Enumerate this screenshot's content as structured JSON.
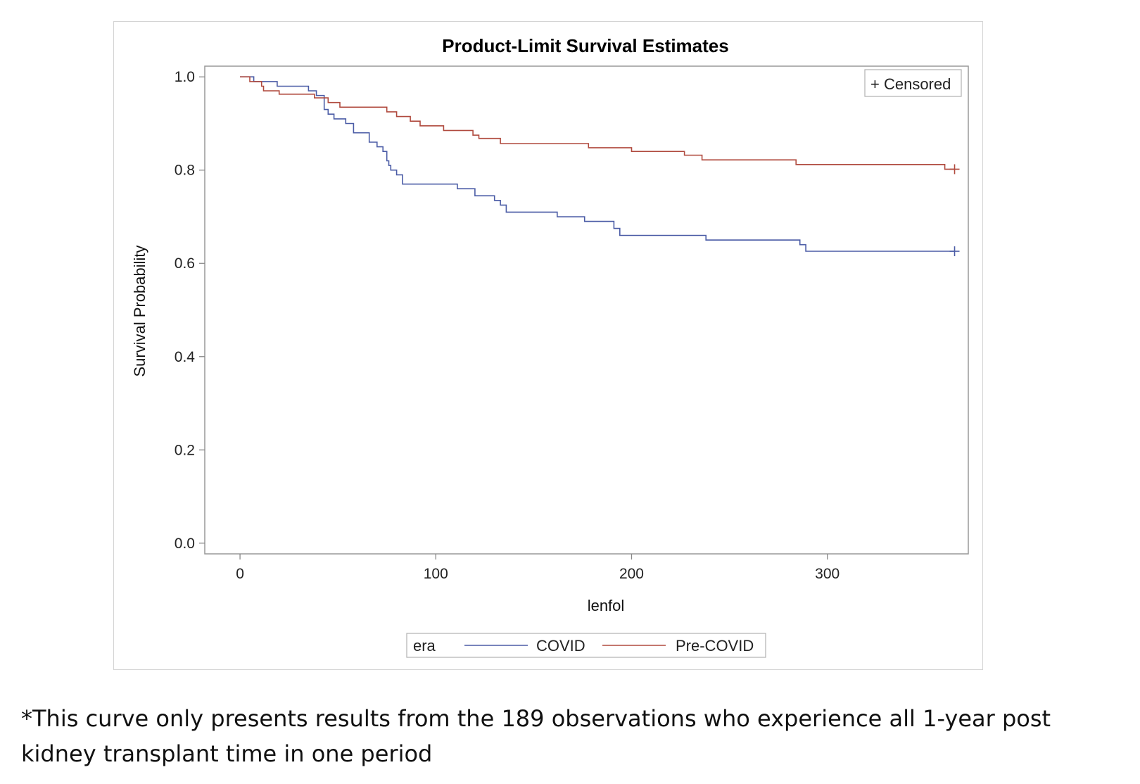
{
  "chart_data": {
    "type": "line",
    "title": "Product-Limit Survival Estimates",
    "xlabel": "lenfol",
    "ylabel": "Survival Probability",
    "xlim": [
      -18,
      372
    ],
    "ylim": [
      -0.023,
      1.023
    ],
    "x_ticks": [
      0,
      100,
      200,
      300
    ],
    "x_tick_labels": [
      "0",
      "100",
      "200",
      "300"
    ],
    "y_ticks": [
      0.0,
      0.2,
      0.4,
      0.6,
      0.8,
      1.0
    ],
    "y_tick_labels": [
      "0.0",
      "0.2",
      "0.4",
      "0.6",
      "0.8",
      "1.0"
    ],
    "grid": false,
    "censor_legend": "+ Censored",
    "legend_title": "era",
    "legend_position": "bottom-center",
    "series": [
      {
        "name": "COVID",
        "color": "#4b5ca6",
        "points": [
          [
            0,
            1.0
          ],
          [
            7,
            1.0
          ],
          [
            7,
            0.99
          ],
          [
            19,
            0.99
          ],
          [
            19,
            0.98
          ],
          [
            35,
            0.98
          ],
          [
            35,
            0.97
          ],
          [
            39,
            0.97
          ],
          [
            39,
            0.96
          ],
          [
            43,
            0.96
          ],
          [
            43,
            0.93
          ],
          [
            45,
            0.93
          ],
          [
            45,
            0.92
          ],
          [
            48,
            0.92
          ],
          [
            48,
            0.91
          ],
          [
            54,
            0.91
          ],
          [
            54,
            0.9
          ],
          [
            58,
            0.9
          ],
          [
            58,
            0.88
          ],
          [
            66,
            0.88
          ],
          [
            66,
            0.86
          ],
          [
            70,
            0.86
          ],
          [
            70,
            0.85
          ],
          [
            73,
            0.85
          ],
          [
            73,
            0.84
          ],
          [
            75,
            0.84
          ],
          [
            75,
            0.82
          ],
          [
            76,
            0.82
          ],
          [
            76,
            0.81
          ],
          [
            77,
            0.81
          ],
          [
            77,
            0.8
          ],
          [
            80,
            0.8
          ],
          [
            80,
            0.79
          ],
          [
            83,
            0.79
          ],
          [
            83,
            0.77
          ],
          [
            111,
            0.77
          ],
          [
            111,
            0.76
          ],
          [
            120,
            0.76
          ],
          [
            120,
            0.745
          ],
          [
            130,
            0.745
          ],
          [
            130,
            0.735
          ],
          [
            133,
            0.735
          ],
          [
            133,
            0.725
          ],
          [
            136,
            0.725
          ],
          [
            136,
            0.71
          ],
          [
            162,
            0.71
          ],
          [
            162,
            0.7
          ],
          [
            176,
            0.7
          ],
          [
            176,
            0.69
          ],
          [
            191,
            0.69
          ],
          [
            191,
            0.675
          ],
          [
            194,
            0.675
          ],
          [
            194,
            0.66
          ],
          [
            238,
            0.66
          ],
          [
            238,
            0.65
          ],
          [
            286,
            0.65
          ],
          [
            286,
            0.64
          ],
          [
            289,
            0.64
          ],
          [
            289,
            0.626
          ],
          [
            365,
            0.626
          ]
        ],
        "censored": [
          [
            365,
            0.626
          ]
        ]
      },
      {
        "name": "Pre-COVID",
        "color": "#b04a3e",
        "points": [
          [
            0,
            1.0
          ],
          [
            5,
            1.0
          ],
          [
            5,
            0.99
          ],
          [
            11,
            0.99
          ],
          [
            11,
            0.98
          ],
          [
            12,
            0.98
          ],
          [
            12,
            0.97
          ],
          [
            20,
            0.97
          ],
          [
            20,
            0.963
          ],
          [
            38,
            0.963
          ],
          [
            38,
            0.955
          ],
          [
            45,
            0.955
          ],
          [
            45,
            0.945
          ],
          [
            51,
            0.945
          ],
          [
            51,
            0.935
          ],
          [
            75,
            0.935
          ],
          [
            75,
            0.925
          ],
          [
            80,
            0.925
          ],
          [
            80,
            0.915
          ],
          [
            87,
            0.915
          ],
          [
            87,
            0.905
          ],
          [
            92,
            0.905
          ],
          [
            92,
            0.895
          ],
          [
            104,
            0.895
          ],
          [
            104,
            0.885
          ],
          [
            119,
            0.885
          ],
          [
            119,
            0.875
          ],
          [
            122,
            0.875
          ],
          [
            122,
            0.868
          ],
          [
            133,
            0.868
          ],
          [
            133,
            0.857
          ],
          [
            178,
            0.857
          ],
          [
            178,
            0.848
          ],
          [
            200,
            0.848
          ],
          [
            200,
            0.84
          ],
          [
            227,
            0.84
          ],
          [
            227,
            0.832
          ],
          [
            236,
            0.832
          ],
          [
            236,
            0.822
          ],
          [
            284,
            0.822
          ],
          [
            284,
            0.812
          ],
          [
            360,
            0.812
          ],
          [
            360,
            0.802
          ],
          [
            365,
            0.802
          ]
        ],
        "censored": [
          [
            365,
            0.802
          ]
        ]
      }
    ]
  },
  "footnote": "*This curve only presents results from the 189 observations who experience all 1-year post kidney transplant time in one period"
}
